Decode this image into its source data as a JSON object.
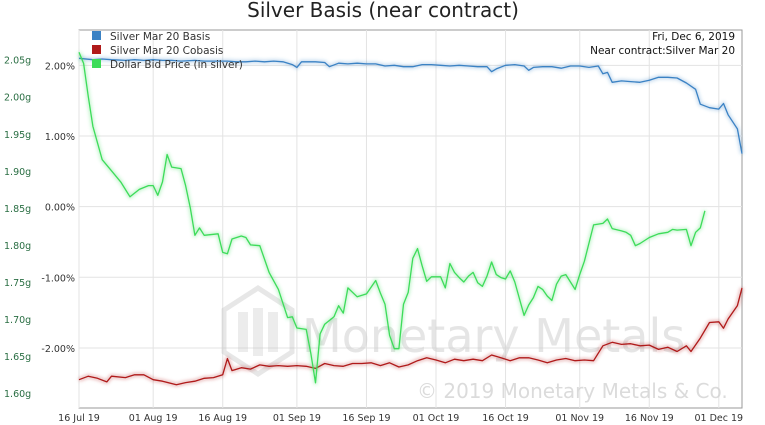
{
  "chart_data": {
    "type": "line",
    "title": "Silver Basis (near contract)",
    "info": {
      "date": "Fri, Dec 6, 2019",
      "contract": "Near contract:Silver Mar 20"
    },
    "watermark": {
      "brand": "Monetary Metals",
      "copyright": "© 2019 Monetary Metals & Co."
    },
    "x_tick_labels": [
      "16 Jul 19",
      "01 Aug 19",
      "16 Aug 19",
      "01 Sep 19",
      "16 Sep 19",
      "01 Oct 19",
      "16 Oct 19",
      "01 Nov 19",
      "16 Nov 19",
      "01 Dec 19"
    ],
    "x_tick_days": [
      15,
      31,
      46,
      62,
      77,
      92,
      107,
      123,
      138,
      153
    ],
    "xlim_days": [
      15,
      158
    ],
    "left_axis": {
      "ticks": [
        "2.05g",
        "2.00g",
        "1.95g",
        "1.90g",
        "1.85g",
        "1.80g",
        "1.75g",
        "1.70g",
        "1.65g",
        "1.60g"
      ],
      "tick_values": [
        2.05,
        2.0,
        1.95,
        1.9,
        1.85,
        1.8,
        1.75,
        1.7,
        1.65,
        1.6
      ],
      "ylim": [
        1.58,
        2.09
      ],
      "unit": "g"
    },
    "right_axis": {
      "ticks": [
        "2.00%",
        "1.00%",
        "0.00%",
        "-1.00%",
        "-2.00%"
      ],
      "tick_values": [
        2.0,
        1.0,
        0.0,
        -1.0,
        -2.0
      ],
      "ylim": [
        -2.85,
        2.5
      ],
      "unit": "%"
    },
    "legend": {
      "position": "top-left"
    },
    "grid": true,
    "series": [
      {
        "name": "Silver Mar 20 Basis",
        "color": "#3b82c4",
        "axis": "right",
        "points": [
          [
            15,
            2.1
          ],
          [
            18,
            2.08
          ],
          [
            20,
            2.09
          ],
          [
            22,
            2.08
          ],
          [
            25,
            2.07
          ],
          [
            27,
            2.08
          ],
          [
            29,
            2.07
          ],
          [
            31,
            2.08
          ],
          [
            33,
            2.07
          ],
          [
            35,
            2.07
          ],
          [
            37,
            2.06
          ],
          [
            40,
            2.07
          ],
          [
            42,
            2.06
          ],
          [
            45,
            2.06
          ],
          [
            47,
            2.06
          ],
          [
            49,
            2.05
          ],
          [
            51,
            2.05
          ],
          [
            53,
            2.06
          ],
          [
            55,
            2.05
          ],
          [
            57,
            2.06
          ],
          [
            59,
            2.05
          ],
          [
            61,
            2.01
          ],
          [
            62,
            1.97
          ],
          [
            63,
            2.05
          ],
          [
            66,
            2.05
          ],
          [
            68,
            2.04
          ],
          [
            69,
            1.98
          ],
          [
            71,
            2.03
          ],
          [
            73,
            2.02
          ],
          [
            75,
            2.03
          ],
          [
            77,
            2.02
          ],
          [
            79,
            2.02
          ],
          [
            81,
            1.99
          ],
          [
            83,
            2.0
          ],
          [
            85,
            1.98
          ],
          [
            87,
            1.98
          ],
          [
            89,
            2.01
          ],
          [
            91,
            2.01
          ],
          [
            93,
            2.0
          ],
          [
            95,
            1.99
          ],
          [
            97,
            2.0
          ],
          [
            99,
            1.99
          ],
          [
            101,
            1.98
          ],
          [
            103,
            1.98
          ],
          [
            104,
            1.91
          ],
          [
            105,
            1.95
          ],
          [
            107,
            2.0
          ],
          [
            109,
            2.01
          ],
          [
            111,
            1.99
          ],
          [
            112,
            1.93
          ],
          [
            113,
            1.97
          ],
          [
            115,
            1.98
          ],
          [
            117,
            1.98
          ],
          [
            119,
            1.96
          ],
          [
            121,
            1.99
          ],
          [
            123,
            1.99
          ],
          [
            125,
            1.97
          ],
          [
            127,
            1.99
          ],
          [
            128,
            1.88
          ],
          [
            129,
            1.9
          ],
          [
            130,
            1.76
          ],
          [
            132,
            1.78
          ],
          [
            134,
            1.77
          ],
          [
            136,
            1.76
          ],
          [
            138,
            1.79
          ],
          [
            140,
            1.83
          ],
          [
            142,
            1.83
          ],
          [
            144,
            1.82
          ],
          [
            146,
            1.75
          ],
          [
            148,
            1.66
          ],
          [
            149,
            1.45
          ],
          [
            151,
            1.4
          ],
          [
            153,
            1.38
          ],
          [
            154,
            1.46
          ],
          [
            155,
            1.3
          ],
          [
            157,
            1.1
          ],
          [
            158,
            0.75
          ]
        ]
      },
      {
        "name": "Silver Mar 20 Cobasis",
        "color": "#b01a1a",
        "axis": "right",
        "points": [
          [
            15,
            -2.45
          ],
          [
            17,
            -2.4
          ],
          [
            19,
            -2.43
          ],
          [
            21,
            -2.48
          ],
          [
            22,
            -2.4
          ],
          [
            25,
            -2.42
          ],
          [
            27,
            -2.38
          ],
          [
            29,
            -2.38
          ],
          [
            31,
            -2.45
          ],
          [
            33,
            -2.47
          ],
          [
            36,
            -2.52
          ],
          [
            38,
            -2.49
          ],
          [
            40,
            -2.47
          ],
          [
            42,
            -2.43
          ],
          [
            44,
            -2.42
          ],
          [
            46,
            -2.38
          ],
          [
            47,
            -2.15
          ],
          [
            48,
            -2.32
          ],
          [
            50,
            -2.28
          ],
          [
            52,
            -2.3
          ],
          [
            54,
            -2.24
          ],
          [
            56,
            -2.26
          ],
          [
            58,
            -2.25
          ],
          [
            60,
            -2.26
          ],
          [
            62,
            -2.25
          ],
          [
            64,
            -2.26
          ],
          [
            66,
            -2.29
          ],
          [
            68,
            -2.22
          ],
          [
            70,
            -2.25
          ],
          [
            72,
            -2.26
          ],
          [
            74,
            -2.22
          ],
          [
            76,
            -2.22
          ],
          [
            78,
            -2.21
          ],
          [
            80,
            -2.25
          ],
          [
            82,
            -2.21
          ],
          [
            84,
            -2.27
          ],
          [
            86,
            -2.24
          ],
          [
            88,
            -2.18
          ],
          [
            90,
            -2.14
          ],
          [
            92,
            -2.17
          ],
          [
            94,
            -2.21
          ],
          [
            96,
            -2.16
          ],
          [
            98,
            -2.18
          ],
          [
            100,
            -2.16
          ],
          [
            102,
            -2.18
          ],
          [
            104,
            -2.1
          ],
          [
            106,
            -2.14
          ],
          [
            108,
            -2.18
          ],
          [
            110,
            -2.14
          ],
          [
            112,
            -2.14
          ],
          [
            114,
            -2.17
          ],
          [
            116,
            -2.21
          ],
          [
            118,
            -2.17
          ],
          [
            120,
            -2.15
          ],
          [
            122,
            -2.18
          ],
          [
            124,
            -2.17
          ],
          [
            126,
            -2.18
          ],
          [
            128,
            -1.97
          ],
          [
            130,
            -1.92
          ],
          [
            132,
            -1.95
          ],
          [
            134,
            -1.94
          ],
          [
            136,
            -1.97
          ],
          [
            138,
            -1.96
          ],
          [
            140,
            -2.02
          ],
          [
            142,
            -1.99
          ],
          [
            144,
            -2.05
          ],
          [
            146,
            -1.97
          ],
          [
            147,
            -2.05
          ],
          [
            149,
            -1.86
          ],
          [
            151,
            -1.64
          ],
          [
            153,
            -1.63
          ],
          [
            154,
            -1.72
          ],
          [
            155,
            -1.59
          ],
          [
            157,
            -1.4
          ],
          [
            158,
            -1.15
          ]
        ]
      },
      {
        "name": "Dollar Bid Price (in silver)",
        "color": "#3ddc5a",
        "axis": "left",
        "points": [
          [
            15,
            2.06
          ],
          [
            16,
            2.045
          ],
          [
            17,
            2.0
          ],
          [
            18,
            1.96
          ],
          [
            20,
            1.915
          ],
          [
            22,
            1.9
          ],
          [
            24,
            1.885
          ],
          [
            26,
            1.865
          ],
          [
            28,
            1.875
          ],
          [
            30,
            1.88
          ],
          [
            31,
            1.88
          ],
          [
            32,
            1.867
          ],
          [
            33,
            1.885
          ],
          [
            34,
            1.922
          ],
          [
            35,
            1.905
          ],
          [
            37,
            1.903
          ],
          [
            38,
            1.88
          ],
          [
            39,
            1.85
          ],
          [
            40,
            1.813
          ],
          [
            41,
            1.823
          ],
          [
            42,
            1.813
          ],
          [
            45,
            1.815
          ],
          [
            46,
            1.79
          ],
          [
            47,
            1.788
          ],
          [
            48,
            1.808
          ],
          [
            50,
            1.812
          ],
          [
            51,
            1.81
          ],
          [
            52,
            1.8
          ],
          [
            54,
            1.799
          ],
          [
            56,
            1.763
          ],
          [
            58,
            1.74
          ],
          [
            60,
            1.702
          ],
          [
            61,
            1.703
          ],
          [
            62,
            1.688
          ],
          [
            64,
            1.686
          ],
          [
            65,
            1.654
          ],
          [
            66,
            1.614
          ],
          [
            67,
            1.68
          ],
          [
            68,
            1.693
          ],
          [
            70,
            1.703
          ],
          [
            71,
            1.718
          ],
          [
            72,
            1.708
          ],
          [
            73,
            1.742
          ],
          [
            75,
            1.73
          ],
          [
            77,
            1.734
          ],
          [
            79,
            1.752
          ],
          [
            80,
            1.735
          ],
          [
            81,
            1.72
          ],
          [
            82,
            1.678
          ],
          [
            83,
            1.66
          ],
          [
            84,
            1.66
          ],
          [
            85,
            1.72
          ],
          [
            86,
            1.736
          ],
          [
            87,
            1.782
          ],
          [
            88,
            1.795
          ],
          [
            89,
            1.772
          ],
          [
            90,
            1.751
          ],
          [
            91,
            1.757
          ],
          [
            93,
            1.757
          ],
          [
            94,
            1.742
          ],
          [
            95,
            1.775
          ],
          [
            96,
            1.763
          ],
          [
            97,
            1.756
          ],
          [
            98,
            1.75
          ],
          [
            99,
            1.758
          ],
          [
            100,
            1.763
          ],
          [
            101,
            1.749
          ],
          [
            102,
            1.744
          ],
          [
            103,
            1.758
          ],
          [
            104,
            1.777
          ],
          [
            105,
            1.76
          ],
          [
            106,
            1.756
          ],
          [
            107,
            1.754
          ],
          [
            108,
            1.765
          ],
          [
            109,
            1.75
          ],
          [
            111,
            1.705
          ],
          [
            112,
            1.719
          ],
          [
            113,
            1.729
          ],
          [
            114,
            1.744
          ],
          [
            115,
            1.74
          ],
          [
            116,
            1.731
          ],
          [
            117,
            1.725
          ],
          [
            118,
            1.747
          ],
          [
            119,
            1.758
          ],
          [
            120,
            1.76
          ],
          [
            122,
            1.74
          ],
          [
            123,
            1.76
          ],
          [
            124,
            1.778
          ],
          [
            126,
            1.827
          ],
          [
            128,
            1.829
          ],
          [
            129,
            1.835
          ],
          [
            130,
            1.822
          ],
          [
            132,
            1.819
          ],
          [
            133,
            1.817
          ],
          [
            134,
            1.813
          ],
          [
            135,
            1.799
          ],
          [
            136,
            1.802
          ],
          [
            138,
            1.81
          ],
          [
            140,
            1.815
          ],
          [
            142,
            1.817
          ],
          [
            143,
            1.821
          ],
          [
            144,
            1.82
          ],
          [
            146,
            1.821
          ],
          [
            147,
            1.799
          ],
          [
            148,
            1.817
          ],
          [
            149,
            1.823
          ],
          [
            150,
            1.846
          ]
        ]
      }
    ]
  }
}
